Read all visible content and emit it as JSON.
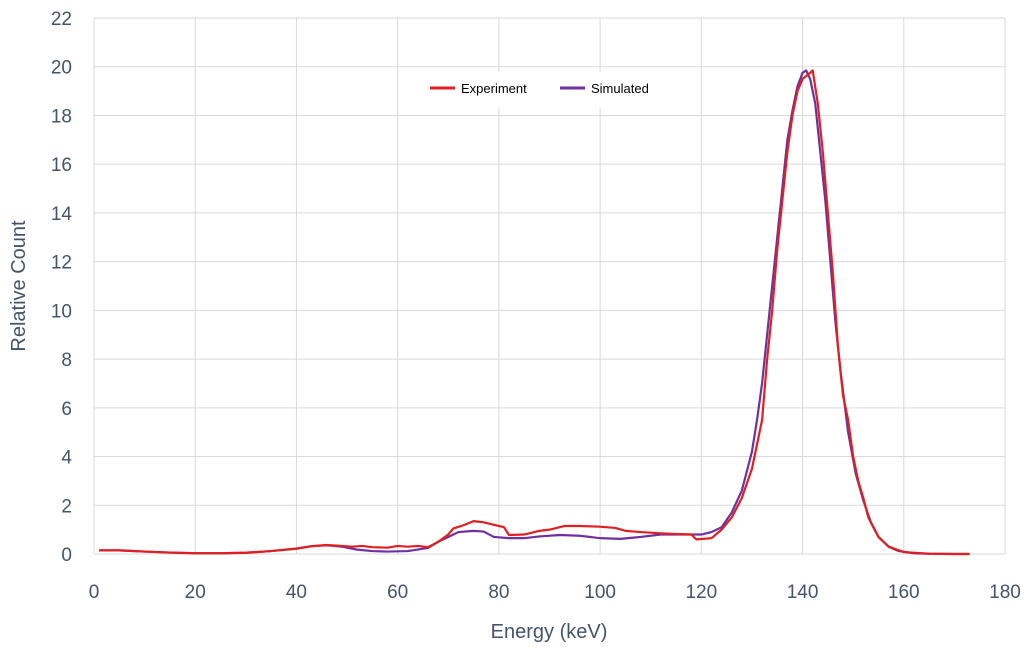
{
  "chart_data": {
    "type": "line",
    "title": "",
    "xlabel": "Energy (keV)",
    "ylabel": "Relative Count",
    "xlim": [
      0,
      180
    ],
    "ylim": [
      0,
      22
    ],
    "x_ticks": [
      0,
      20,
      40,
      60,
      80,
      100,
      120,
      140,
      160,
      180
    ],
    "y_ticks": [
      0,
      2,
      4,
      6,
      8,
      10,
      12,
      14,
      16,
      18,
      20,
      22
    ],
    "grid": true,
    "legend_position": "top-center",
    "series": [
      {
        "name": "Experiment",
        "color": "#e02020",
        "points": [
          [
            1,
            0.15
          ],
          [
            5,
            0.15
          ],
          [
            10,
            0.1
          ],
          [
            15,
            0.06
          ],
          [
            20,
            0.03
          ],
          [
            25,
            0.03
          ],
          [
            30,
            0.05
          ],
          [
            35,
            0.12
          ],
          [
            40,
            0.22
          ],
          [
            43,
            0.32
          ],
          [
            46,
            0.37
          ],
          [
            49,
            0.33
          ],
          [
            51,
            0.3
          ],
          [
            53,
            0.33
          ],
          [
            55,
            0.28
          ],
          [
            58,
            0.26
          ],
          [
            60,
            0.33
          ],
          [
            62,
            0.3
          ],
          [
            64,
            0.33
          ],
          [
            66,
            0.28
          ],
          [
            68,
            0.5
          ],
          [
            70,
            0.8
          ],
          [
            71,
            1.05
          ],
          [
            73,
            1.18
          ],
          [
            75,
            1.35
          ],
          [
            77,
            1.3
          ],
          [
            79,
            1.2
          ],
          [
            81,
            1.1
          ],
          [
            82,
            0.78
          ],
          [
            85,
            0.8
          ],
          [
            88,
            0.95
          ],
          [
            90,
            1.0
          ],
          [
            93,
            1.15
          ],
          [
            96,
            1.15
          ],
          [
            100,
            1.12
          ],
          [
            103,
            1.07
          ],
          [
            105,
            0.95
          ],
          [
            108,
            0.9
          ],
          [
            112,
            0.85
          ],
          [
            115,
            0.82
          ],
          [
            118,
            0.8
          ],
          [
            119,
            0.6
          ],
          [
            122,
            0.65
          ],
          [
            124,
            1.0
          ],
          [
            126,
            1.5
          ],
          [
            128,
            2.3
          ],
          [
            130,
            3.5
          ],
          [
            132,
            5.5
          ],
          [
            133,
            8.0
          ],
          [
            134,
            10.0
          ],
          [
            135,
            12.5
          ],
          [
            136,
            14.5
          ],
          [
            137,
            16.5
          ],
          [
            138,
            18.0
          ],
          [
            139,
            19.0
          ],
          [
            140,
            19.5
          ],
          [
            141.5,
            19.75
          ],
          [
            142,
            19.85
          ],
          [
            143,
            18.5
          ],
          [
            144,
            16.5
          ],
          [
            145,
            14.0
          ],
          [
            146,
            11.5
          ],
          [
            147,
            8.5
          ],
          [
            148,
            6.5
          ],
          [
            149,
            5.5
          ],
          [
            150,
            4.0
          ],
          [
            151,
            3.0
          ],
          [
            152,
            2.3
          ],
          [
            153,
            1.5
          ],
          [
            155,
            0.7
          ],
          [
            157,
            0.3
          ],
          [
            160,
            0.08
          ],
          [
            165,
            0.01
          ],
          [
            170,
            0.0
          ],
          [
            173,
            0.0
          ]
        ]
      },
      {
        "name": "Simulated",
        "color": "#7030a0",
        "points": [
          [
            1,
            0.15
          ],
          [
            5,
            0.15
          ],
          [
            10,
            0.1
          ],
          [
            15,
            0.06
          ],
          [
            20,
            0.03
          ],
          [
            25,
            0.03
          ],
          [
            30,
            0.05
          ],
          [
            35,
            0.12
          ],
          [
            40,
            0.22
          ],
          [
            43,
            0.32
          ],
          [
            46,
            0.36
          ],
          [
            49,
            0.3
          ],
          [
            52,
            0.18
          ],
          [
            55,
            0.12
          ],
          [
            58,
            0.1
          ],
          [
            62,
            0.12
          ],
          [
            66,
            0.25
          ],
          [
            68,
            0.5
          ],
          [
            70,
            0.7
          ],
          [
            72,
            0.9
          ],
          [
            75,
            0.95
          ],
          [
            77,
            0.92
          ],
          [
            79,
            0.7
          ],
          [
            82,
            0.65
          ],
          [
            85,
            0.65
          ],
          [
            88,
            0.72
          ],
          [
            92,
            0.78
          ],
          [
            96,
            0.75
          ],
          [
            100,
            0.65
          ],
          [
            104,
            0.62
          ],
          [
            108,
            0.7
          ],
          [
            112,
            0.8
          ],
          [
            116,
            0.8
          ],
          [
            120,
            0.8
          ],
          [
            122,
            0.9
          ],
          [
            124,
            1.1
          ],
          [
            126,
            1.7
          ],
          [
            128,
            2.6
          ],
          [
            130,
            4.2
          ],
          [
            131,
            5.5
          ],
          [
            132,
            7.0
          ],
          [
            133,
            9.0
          ],
          [
            134,
            11.0
          ],
          [
            135,
            13.0
          ],
          [
            136,
            15.0
          ],
          [
            137,
            17.0
          ],
          [
            138,
            18.2
          ],
          [
            139,
            19.2
          ],
          [
            140,
            19.75
          ],
          [
            140.7,
            19.85
          ],
          [
            141.5,
            19.5
          ],
          [
            142.5,
            18.5
          ],
          [
            143.5,
            16.5
          ],
          [
            144.5,
            14.5
          ],
          [
            145.5,
            12.0
          ],
          [
            146.5,
            9.5
          ],
          [
            147.5,
            7.5
          ],
          [
            149,
            5.0
          ],
          [
            150.5,
            3.3
          ],
          [
            152,
            2.2
          ],
          [
            153.5,
            1.3
          ],
          [
            155,
            0.7
          ],
          [
            157,
            0.3
          ],
          [
            159,
            0.12
          ],
          [
            162,
            0.03
          ],
          [
            165,
            0.01
          ],
          [
            170,
            0.0
          ],
          [
            173,
            0.0
          ]
        ]
      }
    ]
  }
}
